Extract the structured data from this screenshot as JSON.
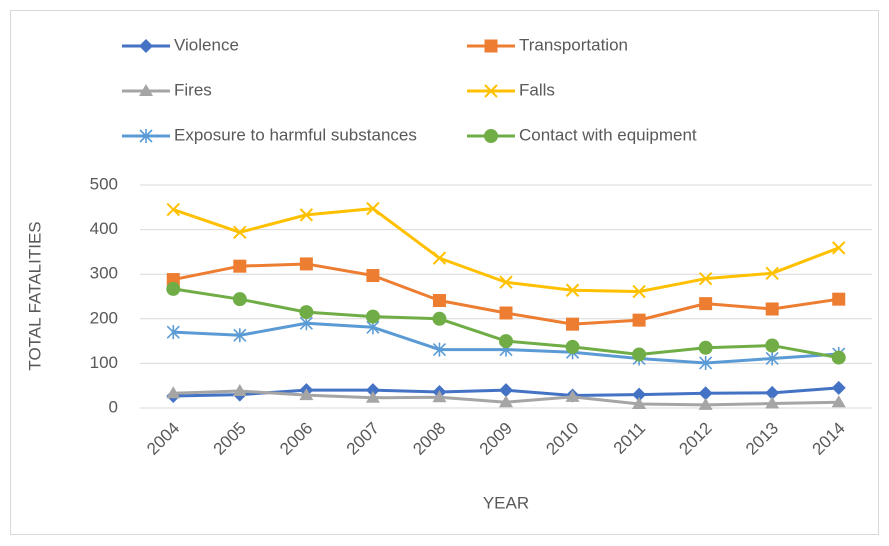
{
  "chart_data": {
    "type": "line",
    "x_label": "YEAR",
    "y_label": "TOTAL FATALITIES",
    "categories": [
      "2004",
      "2005",
      "2006",
      "2007",
      "2008",
      "2009",
      "2010",
      "2011",
      "2012",
      "2013",
      "2014"
    ],
    "series": [
      {
        "name": "Violence",
        "color": "#4472c4",
        "marker": "diamond",
        "values": [
          27,
          30,
          40,
          40,
          36,
          40,
          28,
          30,
          33,
          34,
          45
        ]
      },
      {
        "name": "Transportation",
        "color": "#ed7d31",
        "marker": "square",
        "values": [
          288,
          318,
          323,
          297,
          241,
          213,
          188,
          197,
          234,
          222,
          244
        ]
      },
      {
        "name": "Fires",
        "color": "#a5a5a5",
        "marker": "triangle",
        "values": [
          33,
          38,
          29,
          23,
          24,
          13,
          25,
          9,
          7,
          10,
          13
        ]
      },
      {
        "name": "Falls",
        "color": "#ffc000",
        "marker": "x",
        "values": [
          445,
          394,
          433,
          447,
          336,
          282,
          264,
          261,
          290,
          302,
          359
        ]
      },
      {
        "name": "Exposure to harmful substances",
        "color": "#5b9bd5",
        "marker": "star",
        "values": [
          170,
          163,
          190,
          181,
          131,
          131,
          125,
          111,
          101,
          111,
          121
        ]
      },
      {
        "name": "Contact with equipment",
        "color": "#70ad47",
        "marker": "circle",
        "values": [
          267,
          244,
          215,
          205,
          200,
          150,
          137,
          120,
          135,
          140,
          113
        ]
      }
    ],
    "ylim": [
      0,
      500
    ],
    "yticks": [
      0,
      100,
      200,
      300,
      400,
      500
    ],
    "grid": true,
    "legend": "top"
  }
}
